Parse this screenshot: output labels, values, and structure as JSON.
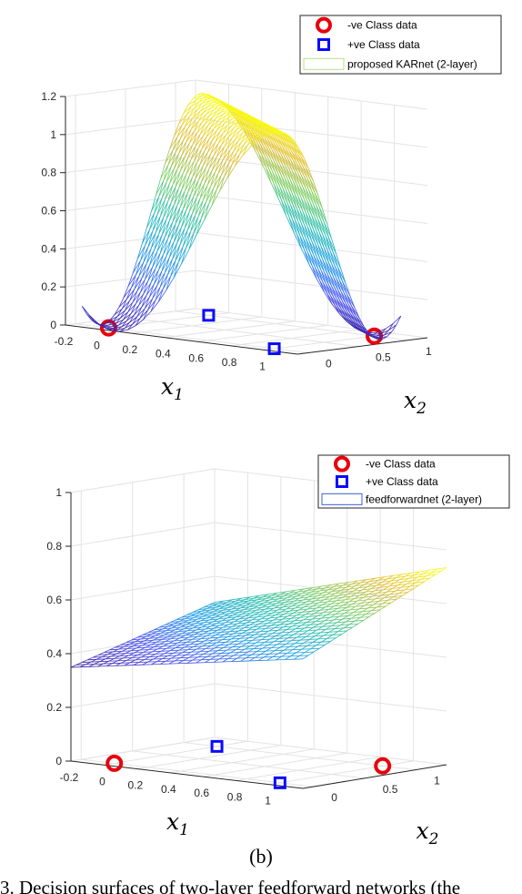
{
  "chart_data": [
    {
      "type": "surface",
      "panel": "a",
      "zlim": [
        0,
        1.2
      ],
      "zticks": [
        "0",
        "0.2",
        "0.4",
        "0.6",
        "0.8",
        "1",
        "1.2"
      ],
      "xticks": [
        "-0.2",
        "0",
        "0.2",
        "0.4",
        "0.6",
        "0.8",
        "1"
      ],
      "yticks": [
        "0",
        "0.5",
        "1"
      ],
      "xlabel": "x",
      "xlabel_sub": "1",
      "ylabel": "x",
      "ylabel_sub": "2",
      "legend": {
        "position": "top-right",
        "entries": [
          "-ve Class data",
          "+ve Class data",
          "proposed KARnet (2-layer)"
        ]
      },
      "neg_class": [
        [
          0,
          0,
          0
        ],
        [
          1,
          1,
          0
        ]
      ],
      "pos_class": [
        [
          0,
          1,
          0
        ],
        [
          1,
          0,
          0
        ]
      ],
      "surface": {
        "form": "1.15 * sin(pi * (x1 + x2) / 2)^2",
        "x1_range": [
          -0.1,
          1.1
        ],
        "x2_range": [
          -0.1,
          1.1
        ]
      },
      "colors": {
        "neg": "#e8000b",
        "pos": "#0a0aff"
      }
    },
    {
      "type": "surface",
      "panel": "b",
      "zlim": [
        0,
        1
      ],
      "zticks": [
        "0",
        "0.2",
        "0.4",
        "0.6",
        "0.8",
        "1"
      ],
      "xticks": [
        "-0.2",
        "0",
        "0.2",
        "0.4",
        "0.6",
        "0.8",
        "1"
      ],
      "yticks": [
        "0",
        "0.5",
        "1"
      ],
      "xlabel": "x",
      "xlabel_sub": "1",
      "ylabel": "x",
      "ylabel_sub": "2",
      "legend": {
        "position": "top-right",
        "entries": [
          "-ve Class data",
          "+ve Class data",
          "feedforwardnet (2-layer)"
        ]
      },
      "neg_class": [
        [
          0,
          0,
          0
        ],
        [
          1,
          1,
          0
        ]
      ],
      "pos_class": [
        [
          0,
          1,
          0
        ],
        [
          1,
          0,
          0
        ]
      ],
      "surface": {
        "form": "0.38 + 0.1 * x1 + 0.12 * x2 + 0.05 * x1 * x2",
        "x1_range": [
          -0.2,
          1.2
        ],
        "x2_range": [
          -0.1,
          1.3
        ]
      },
      "colors": {
        "neg": "#e8000b",
        "pos": "#0a0aff"
      }
    }
  ],
  "caption": "(b)",
  "bottom_text": "3.  Decision surfaces of two-layer feedforward networks (the"
}
